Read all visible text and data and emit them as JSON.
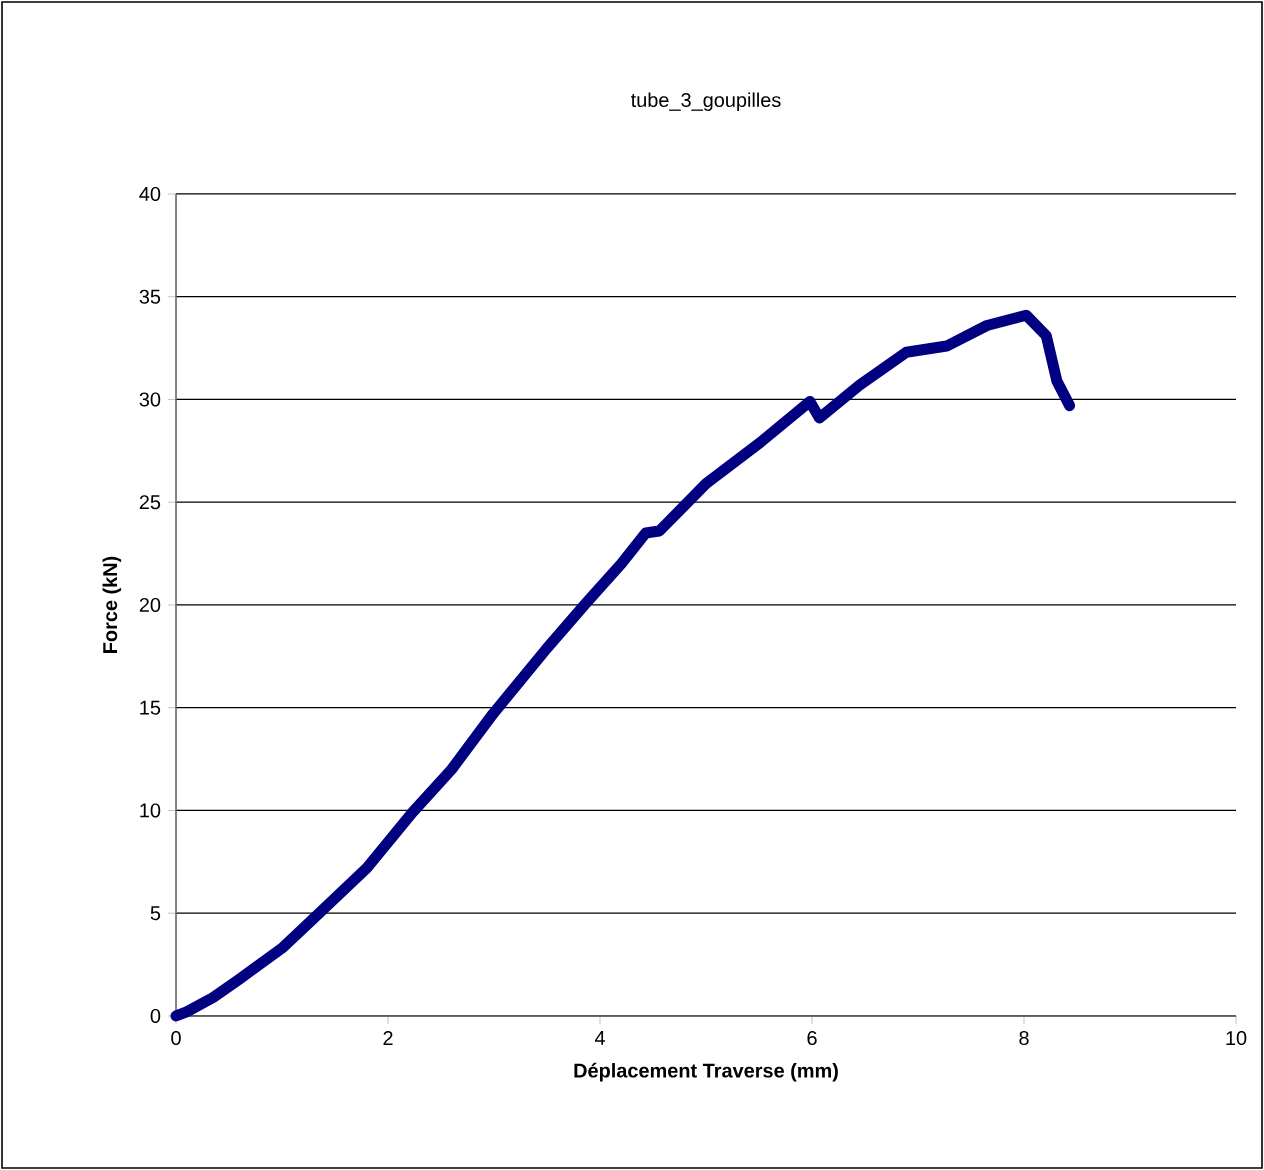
{
  "chart_data": {
    "type": "line",
    "title": "tube_3_goupilles",
    "xlabel": "Déplacement Traverse (mm)",
    "ylabel": "Force (kN)",
    "xlim": [
      0,
      10
    ],
    "ylim": [
      0,
      40
    ],
    "xticks": [
      0,
      2,
      4,
      6,
      8,
      10
    ],
    "yticks": [
      0,
      5,
      10,
      15,
      20,
      25,
      30,
      35,
      40
    ],
    "grid": "y",
    "series": [
      {
        "color": "#000080",
        "x": [
          0,
          0.1,
          0.35,
          0.6,
          1.0,
          1.35,
          1.8,
          2.23,
          2.6,
          2.99,
          3.5,
          3.87,
          4.2,
          4.43,
          4.56,
          5.0,
          5.51,
          5.98,
          6.07,
          6.45,
          6.89,
          7.27,
          7.65,
          8.02,
          8.21,
          8.31,
          8.43
        ],
        "values": [
          0,
          0.2,
          0.9,
          1.8,
          3.3,
          5.0,
          7.2,
          9.9,
          12.0,
          14.7,
          17.9,
          20.1,
          22.0,
          23.5,
          23.6,
          25.9,
          27.9,
          29.9,
          29.1,
          30.7,
          32.3,
          32.6,
          33.6,
          34.1,
          33.1,
          30.9,
          29.7
        ]
      }
    ]
  }
}
